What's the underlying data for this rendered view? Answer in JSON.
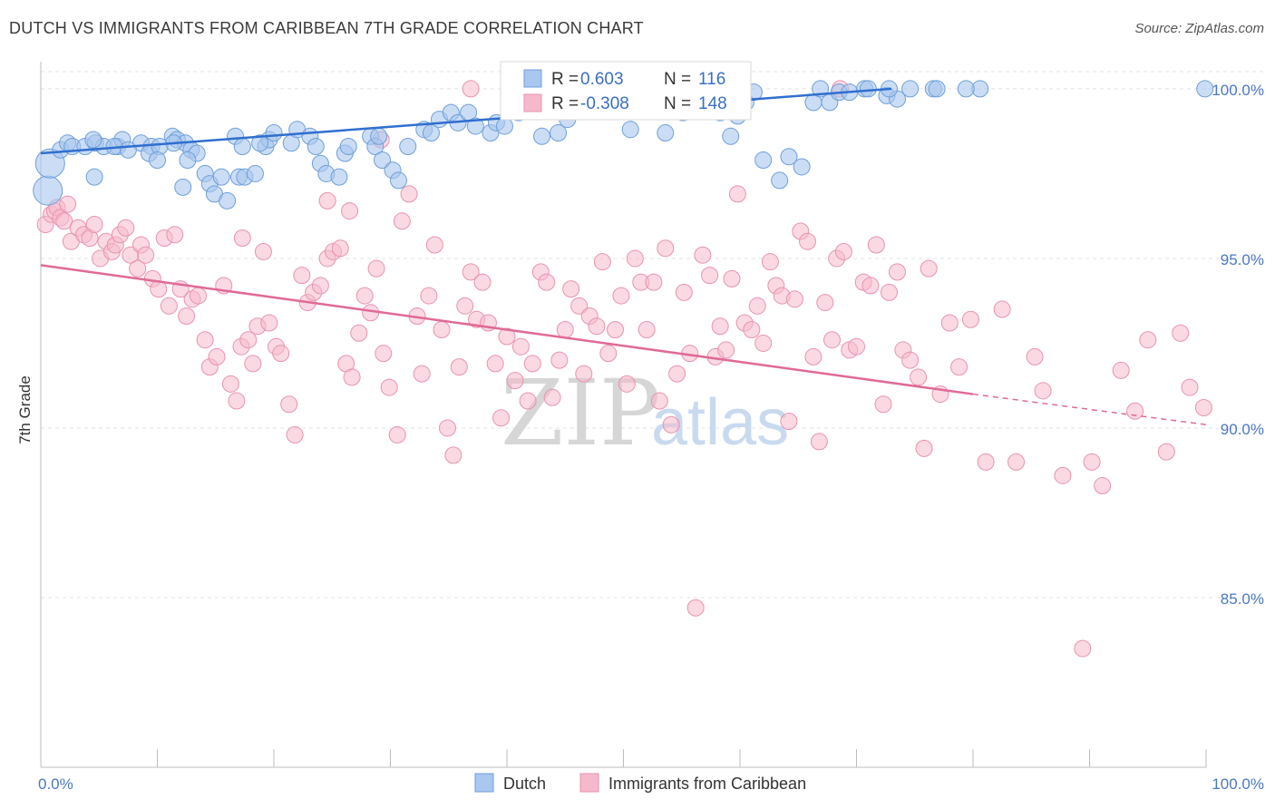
{
  "title": "DUTCH VS IMMIGRANTS FROM CARIBBEAN 7TH GRADE CORRELATION CHART",
  "source": "Source: ZipAtlas.com",
  "watermark": {
    "zip": "ZIP",
    "atlas": "atlas"
  },
  "colors": {
    "dutch_fill": "#a9c7ef",
    "dutch_stroke": "#6f9fd8",
    "dutch_line": "#2f6fd0",
    "carib_fill": "#f6b9cc",
    "carib_stroke": "#e893b0",
    "carib_line": "#e06a96",
    "grid": "#e3e3e3",
    "tick_text": "#4a78c2"
  },
  "legend": {
    "rows": [
      {
        "r_label": "R =",
        "r_value": "0.603",
        "n_label": "N =",
        "n_value": "116"
      },
      {
        "r_label": "R =",
        "r_value": "-0.308",
        "n_label": "N =",
        "n_value": "148"
      }
    ]
  },
  "bottom_legend": [
    "Dutch",
    "Immigrants from Caribbean"
  ],
  "chart_data": {
    "type": "scatter",
    "title": "DUTCH VS IMMIGRANTS FROM CARIBBEAN 7TH GRADE CORRELATION CHART",
    "xlabel": "",
    "ylabel": "7th Grade",
    "xlim": [
      0,
      100
    ],
    "ylim": [
      80.0,
      100.8
    ],
    "x_tick_labels": [
      "0.0%",
      "100.0%"
    ],
    "y_ticks": [
      85,
      90,
      95,
      100
    ],
    "y_tick_labels": [
      "85.0%",
      "90.0%",
      "95.0%",
      "100.0%"
    ],
    "grid": true,
    "legend_position": "top-center",
    "series": [
      {
        "name": "Dutch",
        "r": 0.603,
        "n": 116,
        "trend": {
          "x": [
            0,
            73
          ],
          "y": [
            98.1,
            100.0
          ]
        },
        "points": [
          [
            0.6,
            97.0
          ],
          [
            0.8,
            97.8
          ],
          [
            1.7,
            98.2
          ],
          [
            2.3,
            98.4
          ],
          [
            2.7,
            98.3
          ],
          [
            3.8,
            98.3
          ],
          [
            4.7,
            98.4
          ],
          [
            5.4,
            98.3
          ],
          [
            4.6,
            97.4
          ],
          [
            4.5,
            98.5
          ],
          [
            6.6,
            98.3
          ],
          [
            7.0,
            98.5
          ],
          [
            6.3,
            98.3
          ],
          [
            8.6,
            98.4
          ],
          [
            9.5,
            98.3
          ],
          [
            9.3,
            98.1
          ],
          [
            7.5,
            98.2
          ],
          [
            11.3,
            98.6
          ],
          [
            11.7,
            98.5
          ],
          [
            12.4,
            98.4
          ],
          [
            11.4,
            98.4
          ],
          [
            10.2,
            98.3
          ],
          [
            12.9,
            98.2
          ],
          [
            13.4,
            98.1
          ],
          [
            12.6,
            97.9
          ],
          [
            10.0,
            97.9
          ],
          [
            14.1,
            97.5
          ],
          [
            14.5,
            97.2
          ],
          [
            15.5,
            97.4
          ],
          [
            12.2,
            97.1
          ],
          [
            14.9,
            96.9
          ],
          [
            16.0,
            96.7
          ],
          [
            17.0,
            97.4
          ],
          [
            17.5,
            97.4
          ],
          [
            18.4,
            97.5
          ],
          [
            16.7,
            98.6
          ],
          [
            17.3,
            98.3
          ],
          [
            19.3,
            98.3
          ],
          [
            19.6,
            98.5
          ],
          [
            20.0,
            98.7
          ],
          [
            18.8,
            98.4
          ],
          [
            21.5,
            98.4
          ],
          [
            22.0,
            98.8
          ],
          [
            23.1,
            98.6
          ],
          [
            23.6,
            98.3
          ],
          [
            24.0,
            97.8
          ],
          [
            24.5,
            97.5
          ],
          [
            25.6,
            97.4
          ],
          [
            26.1,
            98.1
          ],
          [
            26.4,
            98.3
          ],
          [
            28.3,
            98.6
          ],
          [
            28.7,
            98.3
          ],
          [
            29.0,
            98.6
          ],
          [
            29.3,
            97.9
          ],
          [
            30.2,
            97.6
          ],
          [
            30.7,
            97.3
          ],
          [
            31.5,
            98.3
          ],
          [
            32.9,
            98.8
          ],
          [
            33.5,
            98.7
          ],
          [
            34.2,
            99.1
          ],
          [
            35.2,
            99.3
          ],
          [
            35.8,
            99.0
          ],
          [
            36.7,
            99.3
          ],
          [
            37.3,
            98.9
          ],
          [
            38.6,
            98.7
          ],
          [
            39.1,
            99.0
          ],
          [
            39.8,
            98.9
          ],
          [
            41.0,
            99.3
          ],
          [
            41.8,
            99.5
          ],
          [
            43.0,
            98.6
          ],
          [
            43.8,
            99.6
          ],
          [
            44.4,
            98.7
          ],
          [
            45.2,
            99.1
          ],
          [
            45.9,
            99.4
          ],
          [
            46.7,
            99.5
          ],
          [
            47.8,
            99.6
          ],
          [
            48.6,
            99.8
          ],
          [
            49.3,
            99.7
          ],
          [
            50.6,
            98.8
          ],
          [
            51.3,
            99.9
          ],
          [
            52.3,
            99.6
          ],
          [
            53.6,
            98.7
          ],
          [
            54.2,
            99.4
          ],
          [
            55.1,
            99.3
          ],
          [
            56.6,
            99.9
          ],
          [
            57.6,
            99.4
          ],
          [
            58.3,
            99.3
          ],
          [
            59.2,
            98.6
          ],
          [
            59.8,
            99.2
          ],
          [
            60.5,
            99.6
          ],
          [
            61.2,
            99.9
          ],
          [
            62.0,
            97.9
          ],
          [
            63.4,
            97.3
          ],
          [
            64.2,
            98.0
          ],
          [
            65.3,
            97.7
          ],
          [
            66.3,
            99.6
          ],
          [
            66.9,
            100.0
          ],
          [
            67.7,
            99.6
          ],
          [
            68.5,
            99.9
          ],
          [
            69.4,
            99.9
          ],
          [
            70.7,
            100.0
          ],
          [
            72.6,
            99.8
          ],
          [
            73.5,
            99.7
          ],
          [
            74.6,
            100.0
          ],
          [
            76.6,
            100.0
          ],
          [
            80.6,
            100.0
          ],
          [
            99.9,
            100.0
          ],
          [
            79.4,
            100.0
          ],
          [
            76.9,
            100.0
          ],
          [
            72.8,
            100.0
          ],
          [
            71.0,
            100.0
          ],
          [
            55.7,
            100.0
          ],
          [
            53.5,
            100.0
          ],
          [
            50.9,
            100.0
          ]
        ]
      },
      {
        "name": "Immigrants from Caribbean",
        "r": -0.308,
        "n": 148,
        "trend": {
          "x": [
            0,
            80
          ],
          "y": [
            94.8,
            91.0
          ]
        },
        "trend_dashed": {
          "x": [
            80,
            100
          ],
          "y": [
            91.0,
            90.1
          ]
        },
        "points": [
          [
            0.4,
            96.0
          ],
          [
            0.9,
            96.3
          ],
          [
            1.2,
            96.4
          ],
          [
            1.4,
            96.5
          ],
          [
            1.7,
            96.2
          ],
          [
            2.0,
            96.1
          ],
          [
            2.3,
            96.6
          ],
          [
            2.6,
            95.5
          ],
          [
            3.2,
            95.9
          ],
          [
            3.7,
            95.7
          ],
          [
            4.2,
            95.6
          ],
          [
            4.6,
            96.0
          ],
          [
            5.1,
            95.0
          ],
          [
            5.6,
            95.5
          ],
          [
            6.1,
            95.2
          ],
          [
            6.4,
            95.4
          ],
          [
            6.8,
            95.7
          ],
          [
            7.3,
            95.9
          ],
          [
            7.7,
            95.1
          ],
          [
            8.3,
            94.7
          ],
          [
            8.6,
            95.4
          ],
          [
            9.0,
            95.1
          ],
          [
            9.6,
            94.4
          ],
          [
            10.1,
            94.1
          ],
          [
            10.6,
            95.6
          ],
          [
            11.0,
            93.6
          ],
          [
            11.5,
            95.7
          ],
          [
            12.0,
            94.1
          ],
          [
            12.5,
            93.3
          ],
          [
            13.0,
            93.8
          ],
          [
            13.5,
            93.9
          ],
          [
            14.1,
            92.6
          ],
          [
            14.5,
            91.8
          ],
          [
            15.1,
            92.1
          ],
          [
            15.7,
            94.2
          ],
          [
            16.3,
            91.3
          ],
          [
            16.8,
            90.8
          ],
          [
            17.2,
            92.4
          ],
          [
            17.8,
            92.6
          ],
          [
            18.2,
            91.9
          ],
          [
            18.6,
            93.0
          ],
          [
            19.1,
            95.2
          ],
          [
            19.6,
            93.1
          ],
          [
            20.2,
            92.4
          ],
          [
            20.6,
            92.2
          ],
          [
            21.3,
            90.7
          ],
          [
            21.8,
            89.8
          ],
          [
            22.4,
            94.5
          ],
          [
            22.9,
            93.7
          ],
          [
            23.4,
            94.0
          ],
          [
            24.0,
            94.2
          ],
          [
            24.6,
            95.0
          ],
          [
            25.1,
            95.2
          ],
          [
            25.7,
            95.3
          ],
          [
            26.2,
            91.9
          ],
          [
            26.7,
            91.5
          ],
          [
            27.3,
            92.8
          ],
          [
            27.8,
            93.9
          ],
          [
            28.3,
            93.4
          ],
          [
            28.8,
            94.7
          ],
          [
            29.4,
            92.2
          ],
          [
            29.9,
            91.2
          ],
          [
            30.6,
            89.8
          ],
          [
            31.0,
            96.1
          ],
          [
            31.6,
            96.9
          ],
          [
            32.3,
            93.3
          ],
          [
            32.7,
            91.6
          ],
          [
            33.3,
            93.9
          ],
          [
            33.8,
            95.4
          ],
          [
            34.4,
            92.9
          ],
          [
            34.9,
            90.0
          ],
          [
            35.4,
            89.2
          ],
          [
            35.9,
            91.8
          ],
          [
            36.4,
            93.6
          ],
          [
            36.9,
            94.6
          ],
          [
            37.4,
            93.2
          ],
          [
            37.9,
            94.3
          ],
          [
            38.4,
            93.1
          ],
          [
            39.0,
            91.9
          ],
          [
            39.5,
            90.3
          ],
          [
            40.0,
            92.7
          ],
          [
            40.7,
            91.4
          ],
          [
            41.2,
            92.4
          ],
          [
            41.8,
            90.8
          ],
          [
            42.2,
            91.9
          ],
          [
            42.9,
            94.6
          ],
          [
            43.4,
            94.3
          ],
          [
            43.9,
            90.9
          ],
          [
            44.5,
            92.0
          ],
          [
            45.0,
            92.9
          ],
          [
            45.5,
            94.1
          ],
          [
            46.2,
            93.6
          ],
          [
            46.6,
            91.6
          ],
          [
            47.1,
            93.3
          ],
          [
            47.7,
            93.0
          ],
          [
            48.2,
            94.9
          ],
          [
            48.7,
            92.2
          ],
          [
            49.3,
            92.9
          ],
          [
            49.8,
            93.9
          ],
          [
            50.3,
            91.3
          ],
          [
            51.0,
            95.0
          ],
          [
            51.5,
            94.3
          ],
          [
            52.0,
            92.9
          ],
          [
            52.6,
            94.3
          ],
          [
            53.1,
            90.8
          ],
          [
            53.6,
            95.3
          ],
          [
            54.1,
            90.1
          ],
          [
            54.6,
            91.6
          ],
          [
            55.2,
            94.0
          ],
          [
            55.7,
            92.2
          ],
          [
            56.2,
            84.7
          ],
          [
            56.8,
            95.1
          ],
          [
            57.4,
            94.5
          ],
          [
            57.9,
            92.1
          ],
          [
            58.3,
            93.0
          ],
          [
            58.8,
            92.3
          ],
          [
            59.3,
            94.4
          ],
          [
            59.8,
            96.9
          ],
          [
            60.4,
            93.1
          ],
          [
            61.0,
            92.9
          ],
          [
            61.5,
            93.6
          ],
          [
            62.0,
            92.5
          ],
          [
            62.6,
            94.9
          ],
          [
            63.1,
            94.2
          ],
          [
            63.6,
            93.9
          ],
          [
            64.2,
            90.2
          ],
          [
            64.7,
            93.8
          ],
          [
            65.2,
            95.8
          ],
          [
            65.8,
            95.5
          ],
          [
            66.3,
            92.1
          ],
          [
            66.8,
            89.6
          ],
          [
            67.3,
            93.7
          ],
          [
            67.9,
            92.6
          ],
          [
            68.3,
            95.0
          ],
          [
            68.9,
            95.2
          ],
          [
            69.4,
            92.3
          ],
          [
            70.0,
            92.4
          ],
          [
            70.6,
            94.3
          ],
          [
            71.2,
            94.2
          ],
          [
            71.7,
            95.4
          ],
          [
            72.3,
            90.7
          ],
          [
            72.8,
            94.0
          ],
          [
            73.5,
            94.6
          ],
          [
            74.0,
            92.3
          ],
          [
            74.6,
            92.0
          ],
          [
            75.3,
            91.5
          ],
          [
            75.8,
            89.4
          ],
          [
            76.2,
            94.7
          ],
          [
            77.2,
            91.0
          ],
          [
            78.0,
            93.1
          ],
          [
            78.8,
            91.8
          ],
          [
            79.8,
            93.2
          ],
          [
            81.1,
            89.0
          ],
          [
            82.5,
            93.5
          ],
          [
            83.7,
            89.0
          ],
          [
            85.3,
            92.1
          ],
          [
            86.0,
            91.1
          ],
          [
            87.7,
            88.6
          ],
          [
            89.4,
            83.5
          ],
          [
            90.2,
            89.0
          ],
          [
            91.1,
            88.3
          ],
          [
            92.7,
            91.7
          ],
          [
            93.9,
            90.5
          ],
          [
            95.0,
            92.6
          ],
          [
            96.6,
            89.3
          ],
          [
            97.8,
            92.8
          ],
          [
            98.6,
            91.2
          ],
          [
            99.8,
            90.6
          ],
          [
            68.6,
            100.0
          ],
          [
            56.0,
            99.8
          ],
          [
            53.5,
            100.0
          ],
          [
            36.9,
            100.0
          ],
          [
            29.2,
            98.5
          ],
          [
            26.5,
            96.4
          ],
          [
            24.6,
            96.7
          ],
          [
            17.3,
            95.6
          ]
        ]
      }
    ]
  }
}
